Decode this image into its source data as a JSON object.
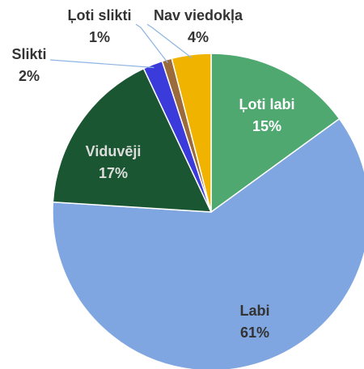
{
  "chart_data": {
    "type": "pie",
    "categories": [
      "Ļoti labi",
      "Labi",
      "Viduvēji",
      "Slikti",
      "Ļoti slikti",
      "Nav viedokļa"
    ],
    "values": [
      15,
      61,
      17,
      2,
      1,
      4
    ],
    "value_labels": [
      "15%",
      "61%",
      "17%",
      "2%",
      "1%",
      "4%"
    ],
    "colors": [
      "#4ea870",
      "#7fa6e0",
      "#1a5632",
      "#3b3bdb",
      "#9b6b3c",
      "#f0b400"
    ]
  }
}
